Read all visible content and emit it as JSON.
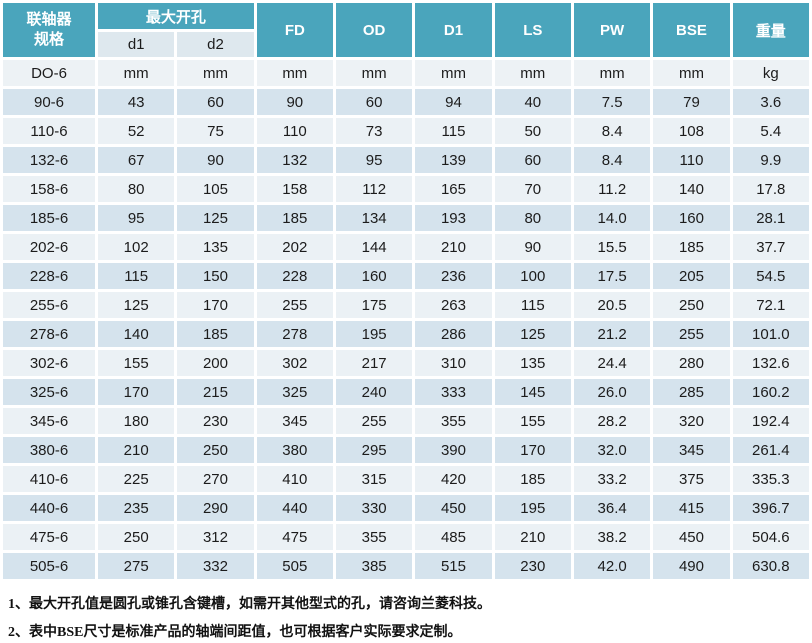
{
  "table": {
    "header": {
      "coupling_spec": "联轴器\n规格",
      "max_bore": "最大开孔",
      "sub": [
        "d1",
        "d2"
      ],
      "cols": [
        "FD",
        "OD",
        "D1",
        "LS",
        "PW",
        "BSE",
        "重量"
      ]
    },
    "units_row": [
      "DO-6",
      "mm",
      "mm",
      "mm",
      "mm",
      "mm",
      "mm",
      "mm",
      "mm",
      "kg"
    ],
    "rows": [
      [
        "90-6",
        "43",
        "60",
        "90",
        "60",
        "94",
        "40",
        "7.5",
        "79",
        "3.6"
      ],
      [
        "110-6",
        "52",
        "75",
        "110",
        "73",
        "115",
        "50",
        "8.4",
        "108",
        "5.4"
      ],
      [
        "132-6",
        "67",
        "90",
        "132",
        "95",
        "139",
        "60",
        "8.4",
        "110",
        "9.9"
      ],
      [
        "158-6",
        "80",
        "105",
        "158",
        "112",
        "165",
        "70",
        "11.2",
        "140",
        "17.8"
      ],
      [
        "185-6",
        "95",
        "125",
        "185",
        "134",
        "193",
        "80",
        "14.0",
        "160",
        "28.1"
      ],
      [
        "202-6",
        "102",
        "135",
        "202",
        "144",
        "210",
        "90",
        "15.5",
        "185",
        "37.7"
      ],
      [
        "228-6",
        "115",
        "150",
        "228",
        "160",
        "236",
        "100",
        "17.5",
        "205",
        "54.5"
      ],
      [
        "255-6",
        "125",
        "170",
        "255",
        "175",
        "263",
        "115",
        "20.5",
        "250",
        "72.1"
      ],
      [
        "278-6",
        "140",
        "185",
        "278",
        "195",
        "286",
        "125",
        "21.2",
        "255",
        "101.0"
      ],
      [
        "302-6",
        "155",
        "200",
        "302",
        "217",
        "310",
        "135",
        "24.4",
        "280",
        "132.6"
      ],
      [
        "325-6",
        "170",
        "215",
        "325",
        "240",
        "333",
        "145",
        "26.0",
        "285",
        "160.2"
      ],
      [
        "345-6",
        "180",
        "230",
        "345",
        "255",
        "355",
        "155",
        "28.2",
        "320",
        "192.4"
      ],
      [
        "380-6",
        "210",
        "250",
        "380",
        "295",
        "390",
        "170",
        "32.0",
        "345",
        "261.4"
      ],
      [
        "410-6",
        "225",
        "270",
        "410",
        "315",
        "420",
        "185",
        "33.2",
        "375",
        "335.3"
      ],
      [
        "440-6",
        "235",
        "290",
        "440",
        "330",
        "450",
        "195",
        "36.4",
        "415",
        "396.7"
      ],
      [
        "475-6",
        "250",
        "312",
        "475",
        "355",
        "485",
        "210",
        "38.2",
        "450",
        "504.6"
      ],
      [
        "505-6",
        "275",
        "332",
        "505",
        "385",
        "515",
        "230",
        "42.0",
        "490",
        "630.8"
      ]
    ]
  },
  "notes": [
    "1、最大开孔值是圆孔或锥孔含键槽，如需开其他型式的孔，请咨询兰菱科技。",
    "2、表中BSE尺寸是标准产品的轴端间距值，也可根据客户实际要求定制。"
  ],
  "colors": {
    "header_teal": "#4AA5BC",
    "subheader_bg": "#DEE8EE",
    "units_row_bg": "#EDF2F5",
    "row_stripe_dark": "#D5E3ED",
    "row_stripe_light": "#EBF1F5",
    "grid_line": "#FFFFFF",
    "text": "#1C1C1C"
  }
}
